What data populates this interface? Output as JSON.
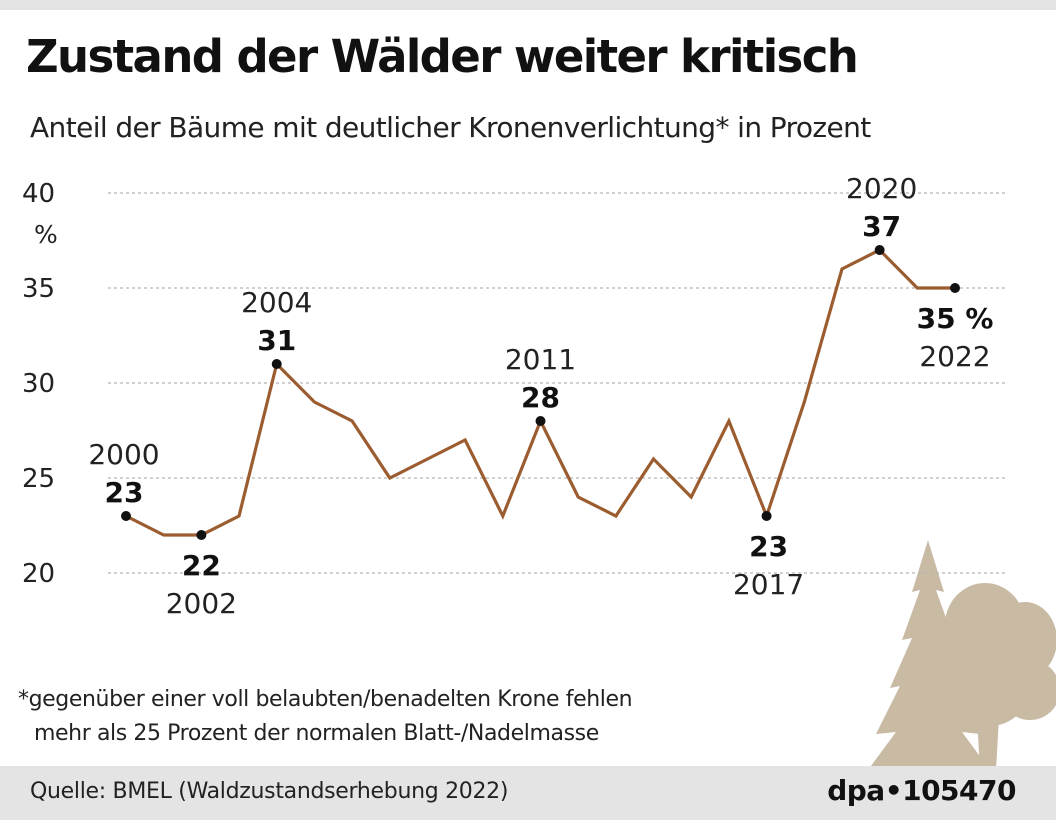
{
  "title": "Zustand der Wälder weiter kritisch",
  "subtitle": "Anteil der Bäume mit deutlicher Kronenverlichtung* in Prozent",
  "footnote": {
    "line1": "*gegenüber einer voll belaubten/benadelten Krone fehlen",
    "line2": "mehr als 25 Prozent der normalen Blatt-/Nadelmasse"
  },
  "source": "Quelle: BMEL (Waldzustandserhebung 2022)",
  "credit": "dpa•105470",
  "colors": {
    "line": "#9b5d30",
    "grid": "#b5b5b5",
    "tree": "#c8baa3",
    "footer_bg": "#e4e4e4"
  },
  "icons": [
    "conifer-tree-icon",
    "deciduous-tree-icon"
  ],
  "chart_data": {
    "type": "line",
    "title": "Zustand der Wälder weiter kritisch",
    "ylabel": "%",
    "ylim": [
      20,
      40
    ],
    "yticks": [
      20,
      25,
      30,
      35,
      40
    ],
    "grid": true,
    "x": [
      2000,
      2001,
      2002,
      2003,
      2004,
      2005,
      2006,
      2007,
      2008,
      2009,
      2010,
      2011,
      2012,
      2013,
      2014,
      2015,
      2016,
      2017,
      2018,
      2019,
      2020,
      2021,
      2022
    ],
    "values": [
      23,
      22,
      22,
      23,
      31,
      29,
      28,
      25,
      26,
      27,
      23,
      28,
      24,
      23,
      26,
      24,
      28,
      23,
      29,
      36,
      37,
      35,
      35
    ],
    "annotations": [
      {
        "year": "2000",
        "value": "23"
      },
      {
        "year": "2002",
        "value": "22"
      },
      {
        "year": "2004",
        "value": "31"
      },
      {
        "year": "2011",
        "value": "28"
      },
      {
        "year": "2017",
        "value": "23"
      },
      {
        "year": "2020",
        "value": "37"
      },
      {
        "year": "2022",
        "value": "35 %"
      }
    ]
  }
}
